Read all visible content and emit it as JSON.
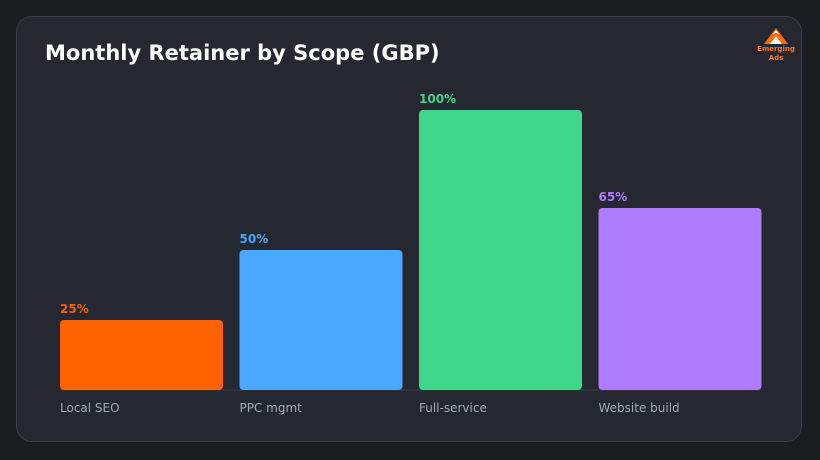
{
  "title": "Monthly Retainer by Scope (GBP)",
  "brand": {
    "line1": "Emerging",
    "line2": "Ads",
    "color": "#ff6a00"
  },
  "chart_data": {
    "type": "bar",
    "title": "Monthly Retainer by Scope (GBP)",
    "categories": [
      "Local SEO",
      "PPC mgmt",
      "Full-service",
      "Website build"
    ],
    "values": [
      25,
      50,
      100,
      65
    ],
    "value_labels": [
      "25%",
      "50%",
      "100%",
      "65%"
    ],
    "colors": [
      "#ff6200",
      "#4aa8ff",
      "#3ed68a",
      "#b07cff"
    ],
    "ylim": [
      0,
      100
    ],
    "grid": false,
    "legend": "none"
  }
}
